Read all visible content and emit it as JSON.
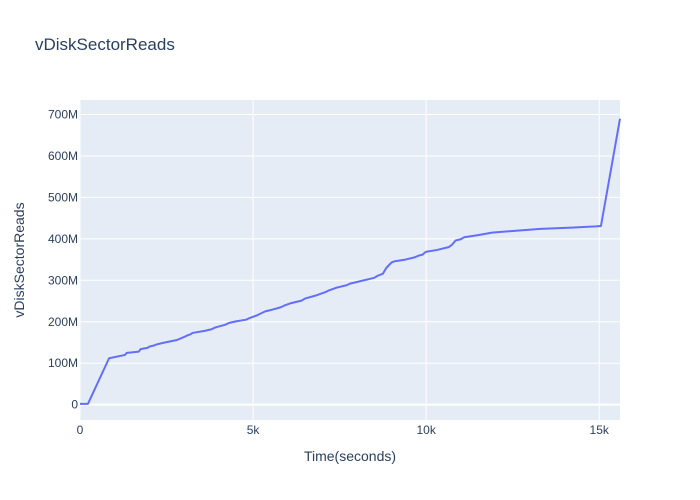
{
  "chart_data": {
    "type": "line",
    "title": "vDiskSectorReads",
    "xlabel": "Time(seconds)",
    "ylabel": "vDiskSectorReads",
    "xlim": [
      0,
      15600
    ],
    "ylim": [
      -37000000,
      735000000
    ],
    "x_ticks": [
      0,
      5000,
      10000,
      15000
    ],
    "x_tick_labels": [
      "0",
      "5k",
      "10k",
      "15k"
    ],
    "y_ticks": [
      0,
      100000000,
      200000000,
      300000000,
      400000000,
      500000000,
      600000000,
      700000000
    ],
    "y_tick_labels": [
      "0",
      "100M",
      "200M",
      "300M",
      "400M",
      "500M",
      "600M",
      "700M"
    ],
    "grid": true,
    "line_color": "#636efa",
    "plot_bg": "#e5ecf6",
    "series": [
      {
        "x": [
          0,
          230,
          840,
          1300,
          1350,
          1700,
          1750,
          1950,
          2000,
          2150,
          2200,
          2400,
          2800,
          3000,
          3100,
          3200,
          3250,
          3600,
          3800,
          3900,
          4200,
          4300,
          4500,
          4800,
          4900,
          5100,
          5200,
          5350,
          5500,
          5800,
          5900,
          6100,
          6400,
          6500,
          6800,
          7100,
          7200,
          7400,
          7500,
          7700,
          7800,
          8000,
          8500,
          8600,
          8750,
          8850,
          9000,
          9100,
          9400,
          9650,
          9800,
          9900,
          9950,
          10000,
          10300,
          10650,
          10750,
          10850,
          11000,
          11100,
          11500,
          11900,
          12500,
          13300,
          14200,
          14900,
          15050,
          15600
        ],
        "y": [
          2000000,
          2000000,
          112000000,
          120000000,
          125000000,
          128000000,
          134000000,
          137000000,
          140000000,
          143000000,
          145000000,
          149000000,
          156000000,
          163000000,
          167000000,
          170000000,
          173000000,
          178000000,
          182000000,
          186000000,
          193000000,
          197000000,
          201000000,
          205000000,
          209000000,
          215000000,
          219000000,
          225000000,
          228000000,
          235000000,
          239000000,
          245000000,
          251000000,
          256000000,
          263000000,
          272000000,
          276000000,
          282000000,
          284000000,
          288000000,
          292000000,
          296000000,
          306000000,
          311000000,
          316000000,
          330000000,
          343000000,
          346000000,
          350000000,
          355000000,
          360000000,
          362000000,
          366000000,
          369000000,
          373000000,
          380000000,
          386000000,
          396000000,
          399000000,
          404000000,
          409000000,
          415000000,
          419000000,
          424000000,
          427000000,
          430000000,
          431000000,
          690000000
        ]
      }
    ]
  }
}
